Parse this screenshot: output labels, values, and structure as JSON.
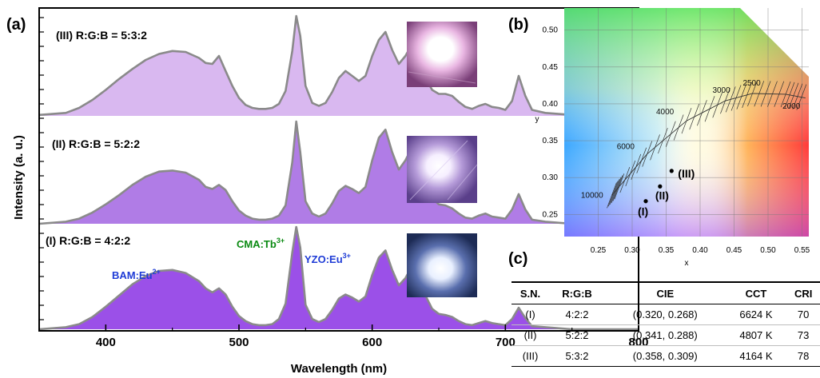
{
  "chart_data": [
    {
      "panel": "(a)",
      "type": "area",
      "xlabel": "Wavelength (nm)",
      "ylabel": "Intensity (a. u.)",
      "xlim": [
        350,
        800
      ],
      "xticks": [
        400,
        500,
        600,
        700,
        800
      ],
      "x": [
        350,
        370,
        380,
        390,
        400,
        410,
        420,
        430,
        440,
        450,
        460,
        470,
        475,
        480,
        485,
        490,
        495,
        500,
        505,
        510,
        515,
        520,
        525,
        530,
        535,
        540,
        543,
        546,
        550,
        555,
        560,
        565,
        570,
        575,
        580,
        585,
        590,
        595,
        600,
        605,
        610,
        615,
        620,
        625,
        630,
        635,
        640,
        645,
        650,
        655,
        660,
        665,
        670,
        675,
        680,
        685,
        690,
        695,
        700,
        705,
        710,
        715,
        720,
        730,
        750,
        800
      ],
      "series": [
        {
          "name": "(III) R:G:B = 5:3:2",
          "color": "#d9b8f0",
          "values": [
            0.01,
            0.03,
            0.08,
            0.16,
            0.26,
            0.37,
            0.47,
            0.56,
            0.62,
            0.65,
            0.64,
            0.58,
            0.53,
            0.52,
            0.6,
            0.45,
            0.3,
            0.18,
            0.11,
            0.08,
            0.07,
            0.07,
            0.08,
            0.12,
            0.25,
            0.65,
            1.0,
            0.8,
            0.3,
            0.13,
            0.1,
            0.13,
            0.24,
            0.38,
            0.45,
            0.4,
            0.35,
            0.4,
            0.6,
            0.76,
            0.84,
            0.66,
            0.52,
            0.6,
            0.72,
            0.58,
            0.38,
            0.26,
            0.22,
            0.22,
            0.2,
            0.14,
            0.09,
            0.07,
            0.1,
            0.12,
            0.09,
            0.08,
            0.06,
            0.15,
            0.4,
            0.2,
            0.06,
            0.03,
            0.01,
            0.0
          ]
        },
        {
          "name": "(II) R:G:B = 5:2:2",
          "color": "#b07ce6",
          "values": [
            0.0,
            0.02,
            0.05,
            0.11,
            0.19,
            0.28,
            0.38,
            0.46,
            0.51,
            0.52,
            0.5,
            0.43,
            0.36,
            0.34,
            0.38,
            0.33,
            0.22,
            0.13,
            0.08,
            0.05,
            0.04,
            0.04,
            0.05,
            0.08,
            0.18,
            0.6,
            1.0,
            0.7,
            0.22,
            0.1,
            0.07,
            0.1,
            0.2,
            0.32,
            0.37,
            0.34,
            0.3,
            0.36,
            0.62,
            0.84,
            0.92,
            0.7,
            0.53,
            0.62,
            0.75,
            0.6,
            0.4,
            0.25,
            0.19,
            0.18,
            0.15,
            0.1,
            0.06,
            0.05,
            0.08,
            0.1,
            0.07,
            0.06,
            0.05,
            0.14,
            0.29,
            0.14,
            0.04,
            0.02,
            0.0,
            0.0
          ]
        },
        {
          "name": "(I) R:G:B = 4:2:2",
          "color": "#9b50e8",
          "values": [
            0.0,
            0.02,
            0.05,
            0.12,
            0.22,
            0.33,
            0.44,
            0.52,
            0.57,
            0.58,
            0.55,
            0.47,
            0.4,
            0.36,
            0.4,
            0.34,
            0.22,
            0.13,
            0.08,
            0.05,
            0.04,
            0.04,
            0.05,
            0.1,
            0.25,
            0.75,
            1.0,
            0.8,
            0.24,
            0.1,
            0.07,
            0.1,
            0.19,
            0.3,
            0.34,
            0.31,
            0.27,
            0.32,
            0.53,
            0.7,
            0.77,
            0.58,
            0.43,
            0.5,
            0.62,
            0.5,
            0.33,
            0.2,
            0.15,
            0.14,
            0.12,
            0.08,
            0.05,
            0.04,
            0.06,
            0.08,
            0.06,
            0.05,
            0.04,
            0.1,
            0.21,
            0.11,
            0.03,
            0.02,
            0.0,
            0.0
          ]
        }
      ],
      "annotations": [
        {
          "text": "BAM:Eu",
          "sup": "2+",
          "color": "#1f3cd6"
        },
        {
          "text": "CMA:Tb",
          "sup": "3+",
          "color": "#0a8a12"
        },
        {
          "text": "YZO:Eu",
          "sup": "3+",
          "color": "#1f3cd6"
        }
      ]
    },
    {
      "panel": "(b)",
      "type": "scatter",
      "xlabel": "x",
      "ylabel": "y",
      "xlim": [
        0.2,
        0.56
      ],
      "ylim": [
        0.22,
        0.53
      ],
      "xticks": [
        "0.25",
        "0.30",
        "0.35",
        "0.40",
        "0.45",
        "0.50",
        "0.55"
      ],
      "yticks": [
        "0.25",
        "0.30",
        "0.35",
        "0.40",
        "0.45",
        "0.50"
      ],
      "grid": true,
      "points": [
        {
          "label": "(I)",
          "x": 0.32,
          "y": 0.268
        },
        {
          "label": "(II)",
          "x": 0.341,
          "y": 0.288
        },
        {
          "label": "(III)",
          "x": 0.358,
          "y": 0.309
        }
      ],
      "planckian_locus_labels": [
        "10000",
        "6000",
        "4000",
        "3000",
        "2500",
        "2000"
      ],
      "planckian_locus": [
        {
          "cct": 10000,
          "x": 0.281,
          "y": 0.288
        },
        {
          "cct": 6000,
          "x": 0.322,
          "y": 0.332
        },
        {
          "cct": 4000,
          "x": 0.38,
          "y": 0.377
        },
        {
          "cct": 3000,
          "x": 0.437,
          "y": 0.404
        },
        {
          "cct": 2500,
          "x": 0.477,
          "y": 0.414
        },
        {
          "cct": 2000,
          "x": 0.526,
          "y": 0.413
        }
      ]
    },
    {
      "panel": "(c)",
      "type": "table",
      "columns": [
        "S.N.",
        "R:G:B",
        "CIE",
        "CCT",
        "CRI"
      ],
      "rows": [
        [
          "(I)",
          "4:2:2",
          "(0.320, 0.268)",
          "6624 K",
          "70"
        ],
        [
          "(II)",
          "5:2:2",
          "(0.341, 0.288)",
          "4807 K",
          "73"
        ],
        [
          "(III)",
          "5:3:2",
          "(0.358, 0.309)",
          "4164 K",
          "78"
        ]
      ]
    }
  ],
  "labels": {
    "panel_a": "(a)",
    "panel_b": "(b)",
    "panel_c": "(c)"
  },
  "photos": {
    "III": "pinkish-lamp-photo",
    "II": "violet-lamp-photo",
    "I": "blue-white-lamp-photo"
  }
}
